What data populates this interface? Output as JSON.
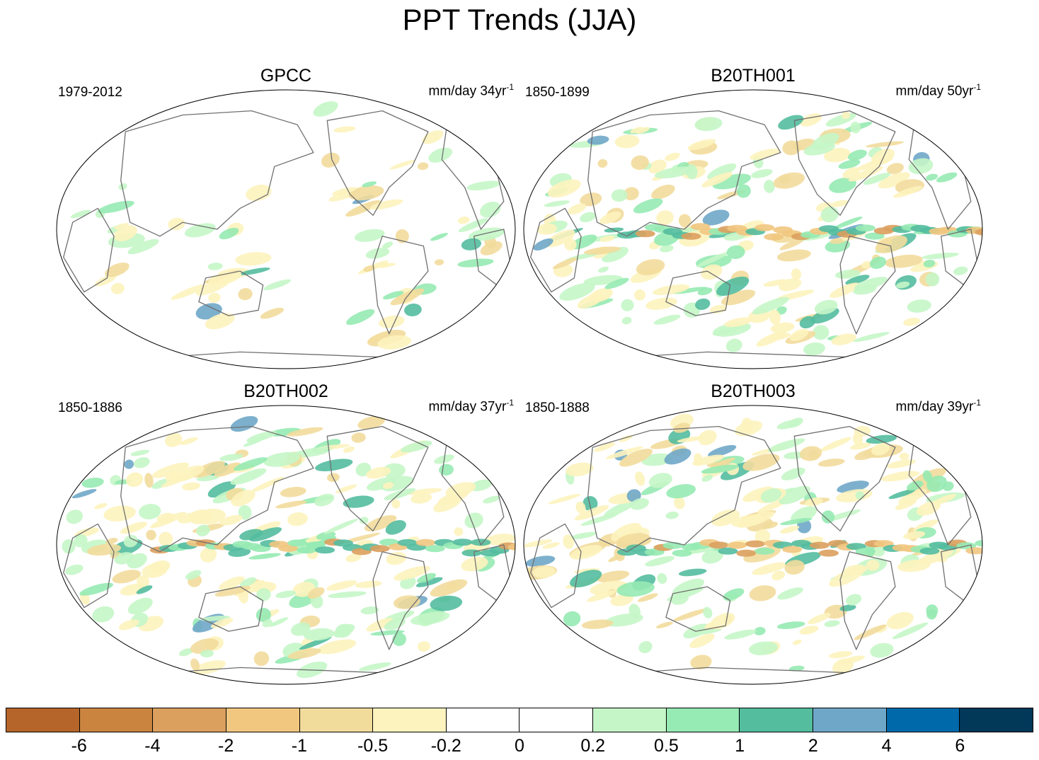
{
  "title": "PPT Trends (JJA)",
  "panels": [
    {
      "name": "GPCC",
      "period": "1979-2012",
      "units": "mm/day 34yr",
      "units_sup": "-1",
      "style": "obs",
      "seed": 11
    },
    {
      "name": "B20TH001",
      "period": "1850-1899",
      "units": "mm/day 50yr",
      "units_sup": "-1",
      "style": "model",
      "seed": 23
    },
    {
      "name": "B20TH002",
      "period": "1850-1886",
      "units": "mm/day 37yr",
      "units_sup": "-1",
      "style": "model",
      "seed": 37
    },
    {
      "name": "B20TH003",
      "period": "1850-1888",
      "units": "mm/day 39yr",
      "units_sup": "-1",
      "style": "model",
      "seed": 53
    }
  ],
  "colorbar": {
    "colors": [
      "#b5652a",
      "#ca843f",
      "#dba05e",
      "#f1c780",
      "#f2dc9c",
      "#fdf3be",
      "#ffffff",
      "#ffffff",
      "#c5f6c8",
      "#96eab3",
      "#53bd9e",
      "#6fa7c8",
      "#0069aa",
      "#023858"
    ],
    "labels": [
      "-6",
      "-4",
      "-2",
      "-1",
      "-0.5",
      "-0.2",
      "0",
      "0.2",
      "0.5",
      "1",
      "2",
      "4",
      "6"
    ]
  }
}
